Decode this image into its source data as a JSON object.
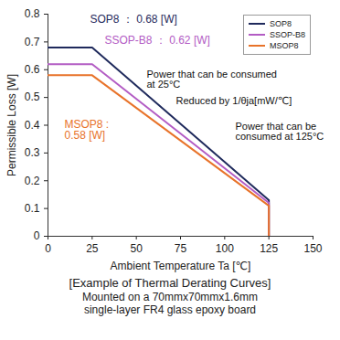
{
  "chart_data": {
    "type": "line",
    "title": "[Example of Thermal Derating Curves]",
    "subtitle": "Mounted on a 70mmx70mmx1.6mm single-layer FR4 glass epoxy board",
    "x_label": "Ambient Temperature Ta [℃]",
    "y_label": "Permissible Loss [W]",
    "x": [
      0,
      25,
      125,
      125
    ],
    "series": [
      {
        "name": "SOP8",
        "color": "#1f2a5c",
        "values": [
          0.68,
          0.68,
          0.13,
          0
        ]
      },
      {
        "name": "SSOP-B8",
        "color": "#b35cc4",
        "values": [
          0.62,
          0.62,
          0.12,
          0
        ]
      },
      {
        "name": "MSOP8",
        "color": "#e8732a",
        "values": [
          0.58,
          0.58,
          0.11,
          0
        ]
      }
    ],
    "xlim": [
      0,
      150
    ],
    "xticks": [
      0,
      25,
      50,
      75,
      100,
      125,
      150
    ],
    "ylim": [
      0,
      0.8
    ],
    "yticks": [
      0,
      0.1,
      0.2,
      0.3,
      0.4,
      0.5,
      0.6,
      0.7,
      0.8
    ],
    "grid": false,
    "legend": "top-right",
    "annotations": [
      {
        "text": "SOP8 ： 0.68 [W]",
        "color": "#1f2a5c"
      },
      {
        "text": "SSOP-B8 ： 0.62 [W]",
        "color": "#b35cc4"
      },
      {
        "text": "Power that can be consumed at 25°C",
        "color": "#111111"
      },
      {
        "text": "Reduced by 1/θja[mW/℃]",
        "color": "#111111"
      },
      {
        "text": "MSOP8 : 0.58 [W]",
        "color": "#e8732a"
      },
      {
        "text": "Power that can be consumed at 125°C",
        "color": "#111111"
      }
    ]
  }
}
